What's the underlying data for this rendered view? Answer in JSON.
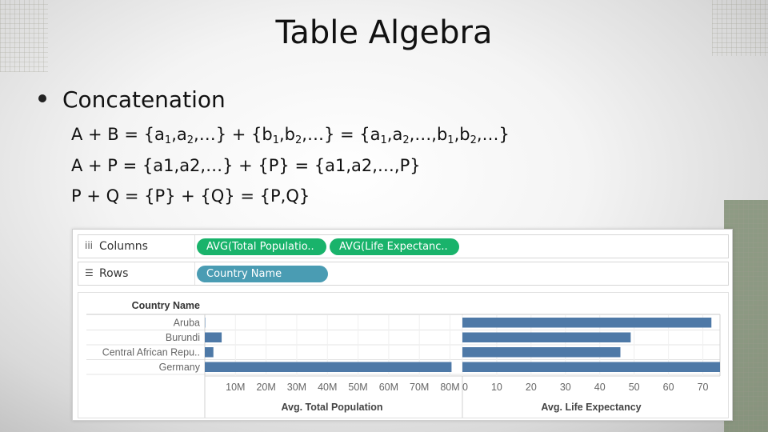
{
  "slide": {
    "title": "Table Algebra",
    "bullet": "Concatenation",
    "formula_1": {
      "a1": "A + B = {a",
      "b": "1",
      "a2": ",a",
      "c": "2",
      "a3": ",…} + {b",
      "d": "1",
      "a4": ",b",
      "e": "2",
      "a5": ",…} = {a",
      "f": "1",
      "a6": ",a",
      "g": "2",
      "a7": ",…,b",
      "h": "1",
      "a8": ",b",
      "i": "2",
      "a9": ",…}"
    },
    "formula_2": "A + P = {a1,a2,…} + {P} = {a1,a2,…,P}",
    "formula_3": "P + Q = {P} + {Q} = {P,Q}"
  },
  "tableau": {
    "columns_shelf": {
      "icon": "columns-icon",
      "label": "Columns",
      "pills": [
        "AVG(Total Populatio..",
        "AVG(Life Expectanc.."
      ]
    },
    "rows_shelf": {
      "icon": "rows-icon",
      "label": "Rows",
      "pills": [
        "Country Name"
      ]
    },
    "colors": {
      "bar": "#4e79a7",
      "green_pill": "#19b36b",
      "blue_pill": "#4a9cb3"
    }
  },
  "chart_data": {
    "type": "bar",
    "orientation": "horizontal",
    "row_header": "Country Name",
    "categories": [
      "Aruba",
      "Burundi",
      "Central African Repu..",
      "Germany"
    ],
    "panes": [
      {
        "xlabel": "Avg. Total Population",
        "ticks": [
          "10M",
          "20M",
          "30M",
          "40M",
          "50M",
          "60M",
          "70M",
          "80M"
        ],
        "tick_values": [
          10,
          20,
          30,
          40,
          50,
          60,
          70,
          80
        ],
        "xlim": [
          0,
          83
        ],
        "values": [
          0.1,
          5.5,
          2.8,
          80.5
        ]
      },
      {
        "xlabel": "Avg. Life Expectancy",
        "ticks": [
          "0",
          "10",
          "20",
          "30",
          "40",
          "50",
          "60",
          "70"
        ],
        "tick_values": [
          0,
          10,
          20,
          30,
          40,
          50,
          60,
          70
        ],
        "xlim": [
          0,
          75
        ],
        "values": [
          72.5,
          49,
          46,
          75
        ]
      }
    ]
  }
}
